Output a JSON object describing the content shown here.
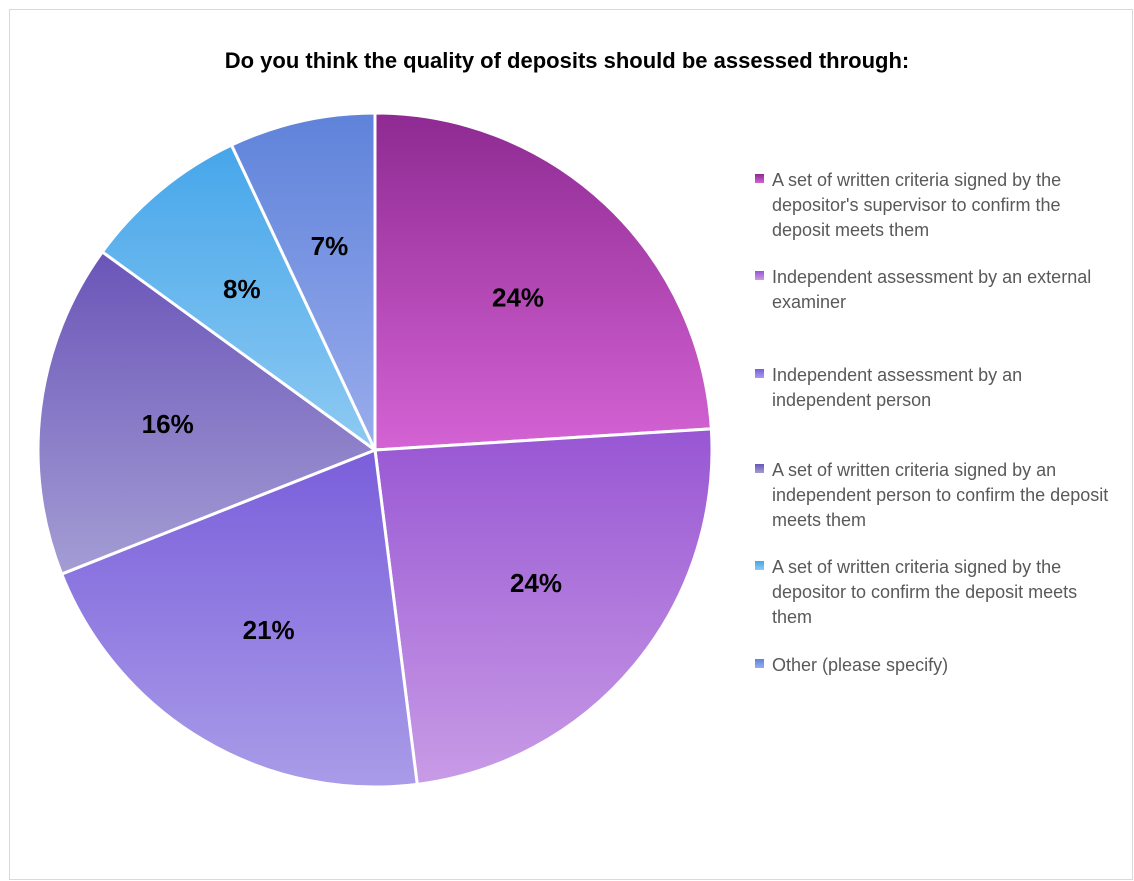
{
  "chart_data": {
    "type": "pie",
    "title": "Do you think the quality of deposits should be assessed through:",
    "slices": [
      {
        "label": "A set of written criteria signed by the depositor's supervisor to confirm the deposit meets them",
        "value": 24,
        "value_label": "24%",
        "color_top": "#8e2a92",
        "color_bottom": "#d463d4"
      },
      {
        "label": "Independent assessment by an external examiner",
        "value": 24,
        "value_label": "24%",
        "color_top": "#9856d3",
        "color_bottom": "#c89be6"
      },
      {
        "label": "Independent assessment by an independent person",
        "value": 21,
        "value_label": "21%",
        "color_top": "#7a5edb",
        "color_bottom": "#a99ce8"
      },
      {
        "label": "A set of written criteria signed by an independent person to confirm the deposit meets them",
        "value": 16,
        "value_label": "16%",
        "color_top": "#6a55b8",
        "color_bottom": "#a49dd4"
      },
      {
        "label": "A set of written criteria signed by the depositor to confirm the deposit meets them",
        "value": 8,
        "value_label": "8%",
        "color_top": "#46a6ea",
        "color_bottom": "#8ecaf2"
      },
      {
        "label": "Other (please specify)",
        "value": 7,
        "value_label": "7%",
        "color_top": "#5f83da",
        "color_bottom": "#9aacec"
      }
    ],
    "legend_position": "right"
  }
}
